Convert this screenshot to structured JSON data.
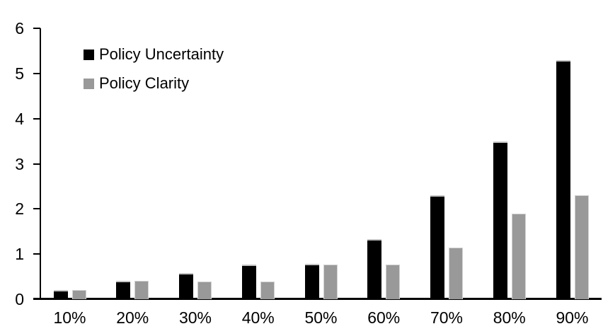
{
  "chart_data": {
    "type": "bar",
    "title": "",
    "xlabel": "",
    "ylabel": "",
    "categories": [
      "10%",
      "20%",
      "30%",
      "40%",
      "50%",
      "60%",
      "70%",
      "80%",
      "90%"
    ],
    "series": [
      {
        "name": "Policy Uncertainty",
        "color": "#000000",
        "values": [
          0.2,
          0.4,
          0.58,
          0.77,
          0.78,
          1.33,
          2.3,
          3.5,
          5.3
        ]
      },
      {
        "name": "Policy Clarity",
        "color": "#999999",
        "values": [
          0.2,
          0.4,
          0.39,
          0.39,
          0.77,
          0.77,
          1.15,
          1.9,
          2.3
        ]
      }
    ],
    "ylim": [
      0,
      6
    ],
    "yticks": [
      0,
      1,
      2,
      3,
      4,
      5,
      6
    ],
    "grid": false,
    "legend_position": "top-left",
    "axis_color": "#000000",
    "background_color": "#ffffff"
  }
}
